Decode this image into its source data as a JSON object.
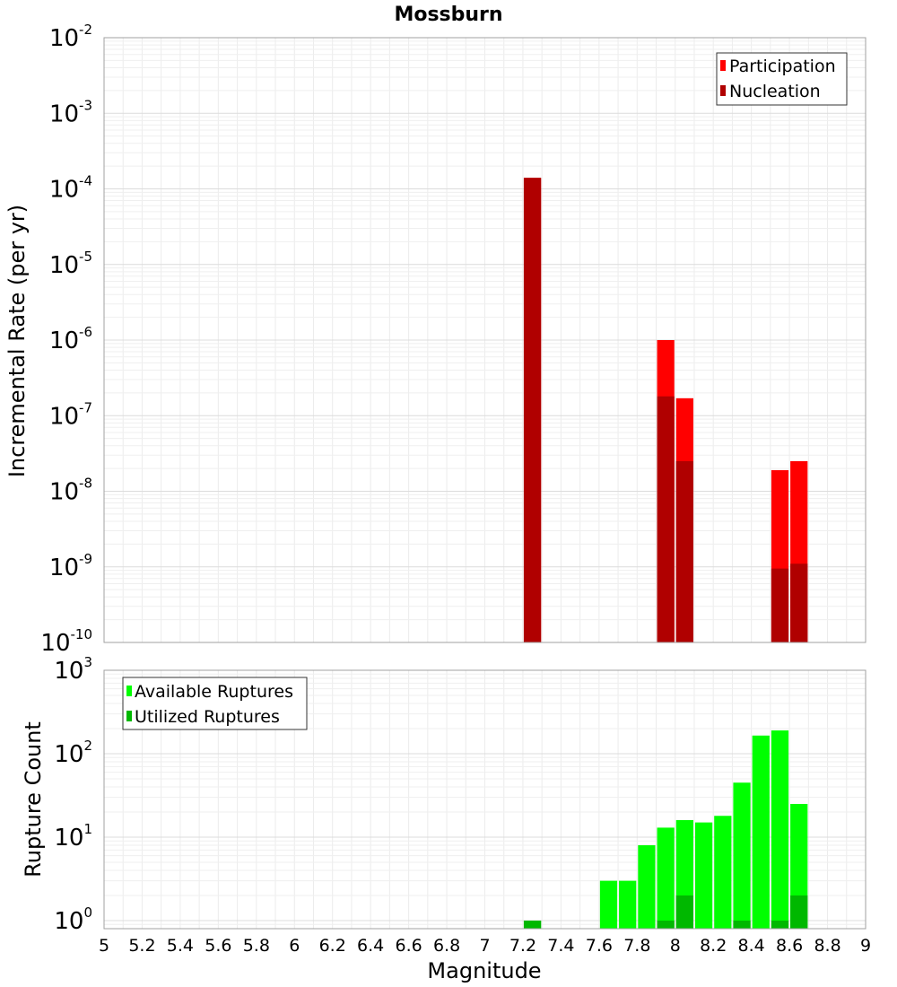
{
  "chart_data": [
    {
      "type": "bar",
      "title": "Mossburn",
      "xlabel": "",
      "ylabel": "Incremental Rate (per yr)",
      "yscale": "log",
      "ylim": [
        1e-10,
        0.01
      ],
      "xlim": [
        5,
        9
      ],
      "grid": true,
      "legend_position": "top-right",
      "y_tick_exponents": [
        "-2",
        "-3",
        "-4",
        "-5",
        "-6",
        "-7",
        "-8",
        "-9",
        "-10"
      ],
      "series": [
        {
          "name": "Participation",
          "color": "#ff0000",
          "points": [
            {
              "x": 7.25,
              "y": 0.00014
            },
            {
              "x": 7.95,
              "y": 1e-06
            },
            {
              "x": 8.05,
              "y": 1.7e-07
            },
            {
              "x": 8.55,
              "y": 1.9e-08
            },
            {
              "x": 8.65,
              "y": 2.5e-08
            }
          ]
        },
        {
          "name": "Nucleation",
          "color": "#b00000",
          "points": [
            {
              "x": 7.25,
              "y": 0.00014
            },
            {
              "x": 7.95,
              "y": 1.8e-07
            },
            {
              "x": 8.05,
              "y": 2.5e-08
            },
            {
              "x": 8.55,
              "y": 9.5e-10
            },
            {
              "x": 8.65,
              "y": 1.1e-09
            }
          ]
        }
      ]
    },
    {
      "type": "bar",
      "title": "",
      "xlabel": "Magnitude",
      "ylabel": "Rupture Count",
      "yscale": "log",
      "ylim": [
        0.8,
        1000
      ],
      "xlim": [
        5,
        9
      ],
      "grid": true,
      "legend_position": "top-left",
      "x_ticks": [
        "5",
        "5.2",
        "5.4",
        "5.6",
        "5.8",
        "6",
        "6.2",
        "6.4",
        "6.6",
        "6.8",
        "7",
        "7.2",
        "7.4",
        "7.6",
        "7.8",
        "8",
        "8.2",
        "8.4",
        "8.6",
        "8.8",
        "9"
      ],
      "y_tick_exponents": [
        "3",
        "2",
        "1",
        "0"
      ],
      "series": [
        {
          "name": "Available Ruptures",
          "color": "#00ff00",
          "points": [
            {
              "x": 7.25,
              "y": 1
            },
            {
              "x": 7.65,
              "y": 3
            },
            {
              "x": 7.75,
              "y": 3
            },
            {
              "x": 7.85,
              "y": 8
            },
            {
              "x": 7.95,
              "y": 13
            },
            {
              "x": 8.05,
              "y": 16
            },
            {
              "x": 8.15,
              "y": 15
            },
            {
              "x": 8.25,
              "y": 18
            },
            {
              "x": 8.35,
              "y": 45
            },
            {
              "x": 8.45,
              "y": 165
            },
            {
              "x": 8.55,
              "y": 190
            },
            {
              "x": 8.65,
              "y": 25
            }
          ]
        },
        {
          "name": "Utilized Ruptures",
          "color": "#00b800",
          "points": [
            {
              "x": 7.25,
              "y": 1
            },
            {
              "x": 7.95,
              "y": 1
            },
            {
              "x": 8.05,
              "y": 2
            },
            {
              "x": 8.35,
              "y": 1
            },
            {
              "x": 8.55,
              "y": 1
            },
            {
              "x": 8.65,
              "y": 2
            }
          ]
        }
      ]
    }
  ]
}
